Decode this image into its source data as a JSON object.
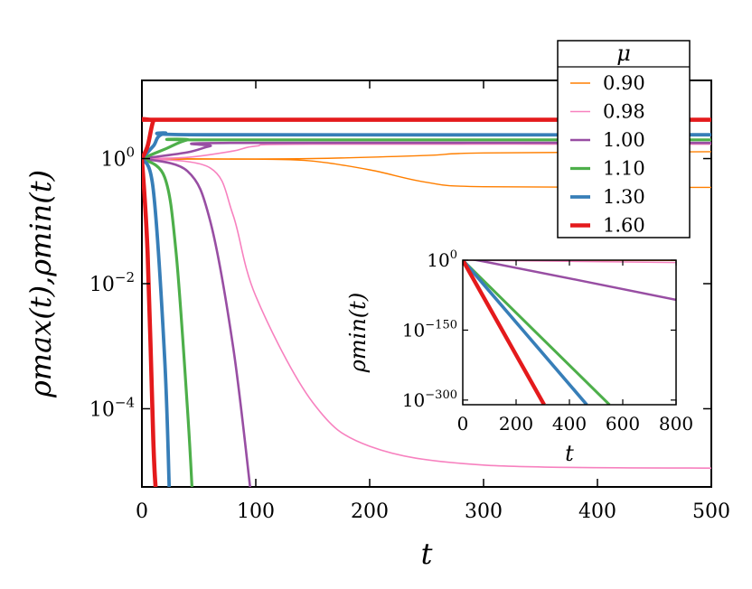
{
  "chart_data": [
    {
      "type": "line",
      "xlabel": "t",
      "ylabel": "ρmax(t),ρmin(t)",
      "xlim": [
        0,
        500
      ],
      "ylim_log10": [
        -5.25,
        1.25
      ],
      "y_scale": "log",
      "x_ticks": [
        "0",
        "100",
        "200",
        "300",
        "400",
        "500"
      ],
      "y_ticks": [
        {
          "base": "10",
          "exp": "0"
        },
        {
          "base": "10",
          "exp": "−2"
        },
        {
          "base": "10",
          "exp": "−4"
        }
      ],
      "grid": false,
      "legend": {
        "title": "μ",
        "placement": "top-right"
      },
      "series": [
        {
          "name": "0.90",
          "color": "#ff7f00",
          "max": [
            [
              0,
              -0.02
            ],
            [
              40,
              -0.01
            ],
            [
              150,
              0.0
            ],
            [
              250,
              0.05
            ],
            [
              300,
              0.09
            ],
            [
              500,
              0.11
            ]
          ],
          "min": [
            [
              0,
              0
            ],
            [
              100,
              -0.01
            ],
            [
              150,
              -0.04
            ],
            [
              200,
              -0.18
            ],
            [
              250,
              -0.38
            ],
            [
              300,
              -0.45
            ],
            [
              500,
              -0.46
            ]
          ]
        },
        {
          "name": "0.98",
          "color": "#f781bf",
          "max": [
            [
              0,
              0
            ],
            [
              40,
              0.02
            ],
            [
              80,
              0.12
            ],
            [
              100,
              0.2
            ],
            [
              150,
              0.23
            ],
            [
              500,
              0.23
            ]
          ],
          "min": [
            [
              0,
              0
            ],
            [
              60,
              -0.15
            ],
            [
              80,
              -0.9
            ],
            [
              100,
              -2.2
            ],
            [
              150,
              -3.9
            ],
            [
              200,
              -4.6
            ],
            [
              300,
              -4.9
            ],
            [
              500,
              -4.95
            ]
          ]
        },
        {
          "name": "1.00",
          "color": "#984ea3",
          "max": [
            [
              0,
              0
            ],
            [
              40,
              0.1
            ],
            [
              60,
              0.2
            ],
            [
              80,
              0.25
            ],
            [
              500,
              0.25
            ]
          ],
          "min": [
            [
              0,
              0
            ],
            [
              40,
              -0.2
            ],
            [
              60,
              -1.0
            ],
            [
              80,
              -3.0
            ],
            [
              95,
              -5.25
            ]
          ]
        },
        {
          "name": "1.10",
          "color": "#4daf4a",
          "max": [
            [
              0,
              0
            ],
            [
              20,
              0.15
            ],
            [
              40,
              0.3
            ],
            [
              60,
              0.3
            ],
            [
              500,
              0.3
            ]
          ],
          "min": [
            [
              0,
              0
            ],
            [
              20,
              -0.3
            ],
            [
              30,
              -1.5
            ],
            [
              40,
              -4.0
            ],
            [
              44,
              -5.25
            ]
          ]
        },
        {
          "name": "1.30",
          "color": "#377eb8",
          "max": [
            [
              0,
              0
            ],
            [
              10,
              0.2
            ],
            [
              20,
              0.4
            ],
            [
              60,
              0.38
            ],
            [
              500,
              0.38
            ]
          ],
          "min": [
            [
              0,
              0
            ],
            [
              10,
              -0.5
            ],
            [
              20,
              -3.2
            ],
            [
              24,
              -5.25
            ]
          ]
        },
        {
          "name": "1.60",
          "color": "#e41a1c",
          "max": [
            [
              0,
              0
            ],
            [
              5,
              0.2
            ],
            [
              10,
              0.6
            ],
            [
              15,
              0.62
            ],
            [
              500,
              0.62
            ]
          ],
          "min": [
            [
              0,
              0
            ],
            [
              5,
              -1.5
            ],
            [
              10,
              -4.5
            ],
            [
              12,
              -5.25
            ]
          ]
        }
      ]
    },
    {
      "type": "line",
      "xlabel": "t",
      "ylabel": "ρmin(t)",
      "xlim": [
        0,
        800
      ],
      "ylim_log10": [
        -310,
        0
      ],
      "y_scale": "log",
      "x_ticks": [
        "0",
        "200",
        "400",
        "600",
        "800"
      ],
      "y_ticks": [
        {
          "base": "10",
          "exp": "0"
        },
        {
          "base": "10",
          "exp": "−150"
        },
        {
          "base": "10",
          "exp": "−300"
        }
      ],
      "series": [
        {
          "name": "0.90",
          "color": "#ff7f00",
          "values": [
            [
              0,
              0
            ],
            [
              800,
              -0.5
            ]
          ]
        },
        {
          "name": "0.98",
          "color": "#f781bf",
          "values": [
            [
              0,
              0
            ],
            [
              800,
              -5
            ]
          ]
        },
        {
          "name": "1.00",
          "color": "#984ea3",
          "values": [
            [
              0,
              0
            ],
            [
              80,
              -3
            ],
            [
              800,
              -85
            ]
          ]
        },
        {
          "name": "1.10",
          "color": "#4daf4a",
          "values": [
            [
              0,
              0
            ],
            [
              550,
              -310
            ]
          ]
        },
        {
          "name": "1.30",
          "color": "#377eb8",
          "values": [
            [
              0,
              0
            ],
            [
              465,
              -310
            ]
          ]
        },
        {
          "name": "1.60",
          "color": "#e41a1c",
          "values": [
            [
              0,
              0
            ],
            [
              305,
              -310
            ]
          ]
        }
      ]
    }
  ]
}
